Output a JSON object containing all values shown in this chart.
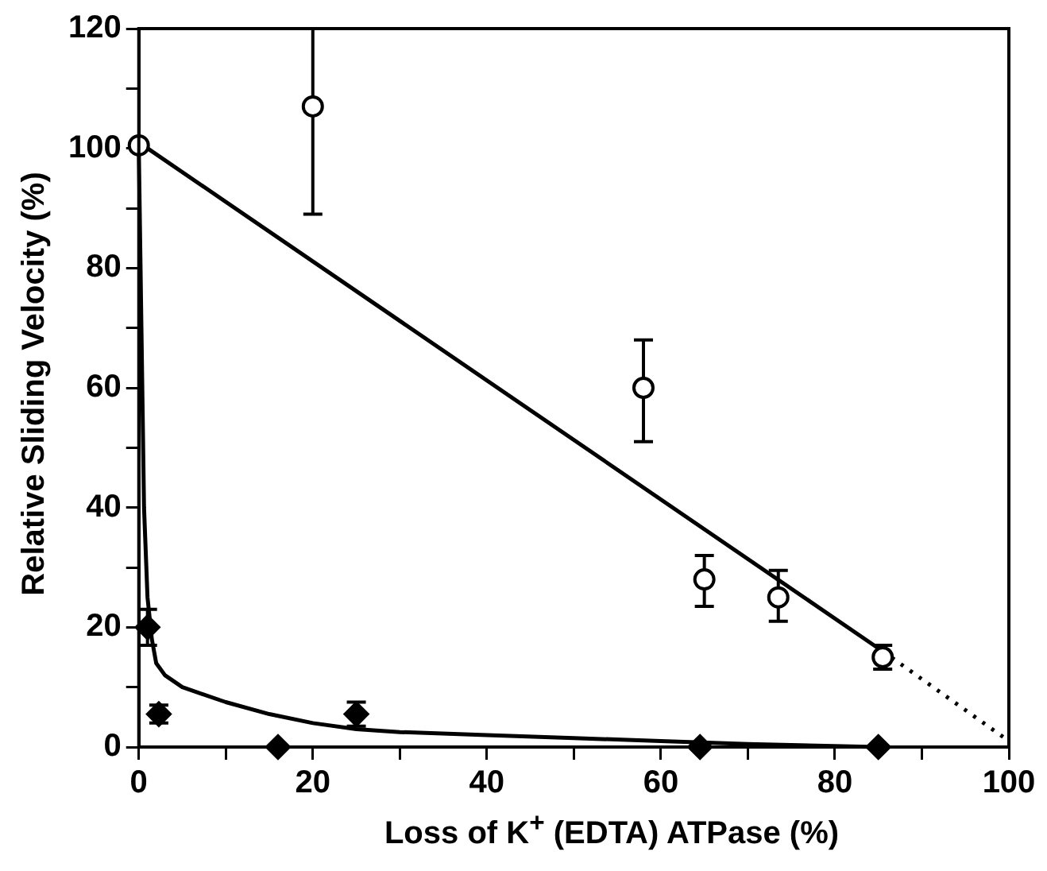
{
  "chart_data": {
    "type": "scatter",
    "xlabel": "Loss of K$^{+}$ (EDTA) ATPase (%)",
    "ylabel": "Relative Sliding Velocity (%)",
    "xlim": [
      0,
      100
    ],
    "ylim": [
      0,
      120
    ],
    "xticks": [
      0,
      {
        "value": 10,
        "label": null
      },
      20,
      {
        "value": 30,
        "label": null
      },
      40,
      {
        "value": 50,
        "label": null
      },
      60,
      {
        "value": 70,
        "label": null
      },
      80,
      {
        "value": 90,
        "label": null
      },
      100
    ],
    "yticks": [
      0,
      {
        "value": 10,
        "label": null
      },
      20,
      {
        "value": 30,
        "label": null
      },
      40,
      {
        "value": 50,
        "label": null
      },
      60,
      {
        "value": 70,
        "label": null
      },
      80,
      {
        "value": 90,
        "label": null
      },
      100,
      {
        "value": 110,
        "label": null
      },
      120
    ],
    "grid": false,
    "legend": false,
    "series": [
      {
        "marker": "circle",
        "color": "#000000",
        "x": [
          20,
          58,
          65,
          73.5,
          85.5
        ],
        "values": [
          107,
          60,
          28,
          25,
          15
        ],
        "errors": [
          [
            89,
            120
          ],
          [
            51,
            68
          ],
          [
            23.5,
            32
          ],
          [
            21,
            29.5
          ],
          [
            13,
            17
          ]
        ]
      },
      {
        "marker": "circle",
        "color": "#000000",
        "x": [
          0
        ],
        "values": [
          100.5
        ]
      },
      {
        "marker": "diamond",
        "color": "#000000",
        "x": [
          1,
          2.3,
          16,
          25,
          64.5,
          85
        ],
        "values": [
          20,
          5.5,
          0,
          5.5,
          0,
          0
        ],
        "errors": [
          [
            17,
            23
          ],
          [
            4,
            7
          ],
          null,
          [
            3.5,
            7.5
          ],
          null,
          null
        ]
      },
      {
        "type": "line",
        "marker": "none",
        "line_style": "solid",
        "color": "#000000",
        "x": [
          0,
          85.5
        ],
        "values": [
          101,
          16
        ]
      },
      {
        "type": "line",
        "marker": "none",
        "line_style": "dotted",
        "color": "#000000",
        "x": [
          85.5,
          100
        ],
        "values": [
          16,
          1
        ]
      },
      {
        "type": "line",
        "marker": "none",
        "line_style": "solid",
        "color": "#000000",
        "x": [
          0,
          0.3,
          0.6,
          1,
          1.5,
          2,
          3,
          5,
          10,
          15,
          20,
          25,
          30,
          40,
          50,
          60,
          70,
          85
        ],
        "values": [
          100,
          70,
          40,
          25,
          18,
          14,
          12,
          10,
          7.5,
          5.5,
          4,
          3,
          2.5,
          2,
          1.5,
          1,
          0.5,
          0
        ]
      }
    ]
  }
}
